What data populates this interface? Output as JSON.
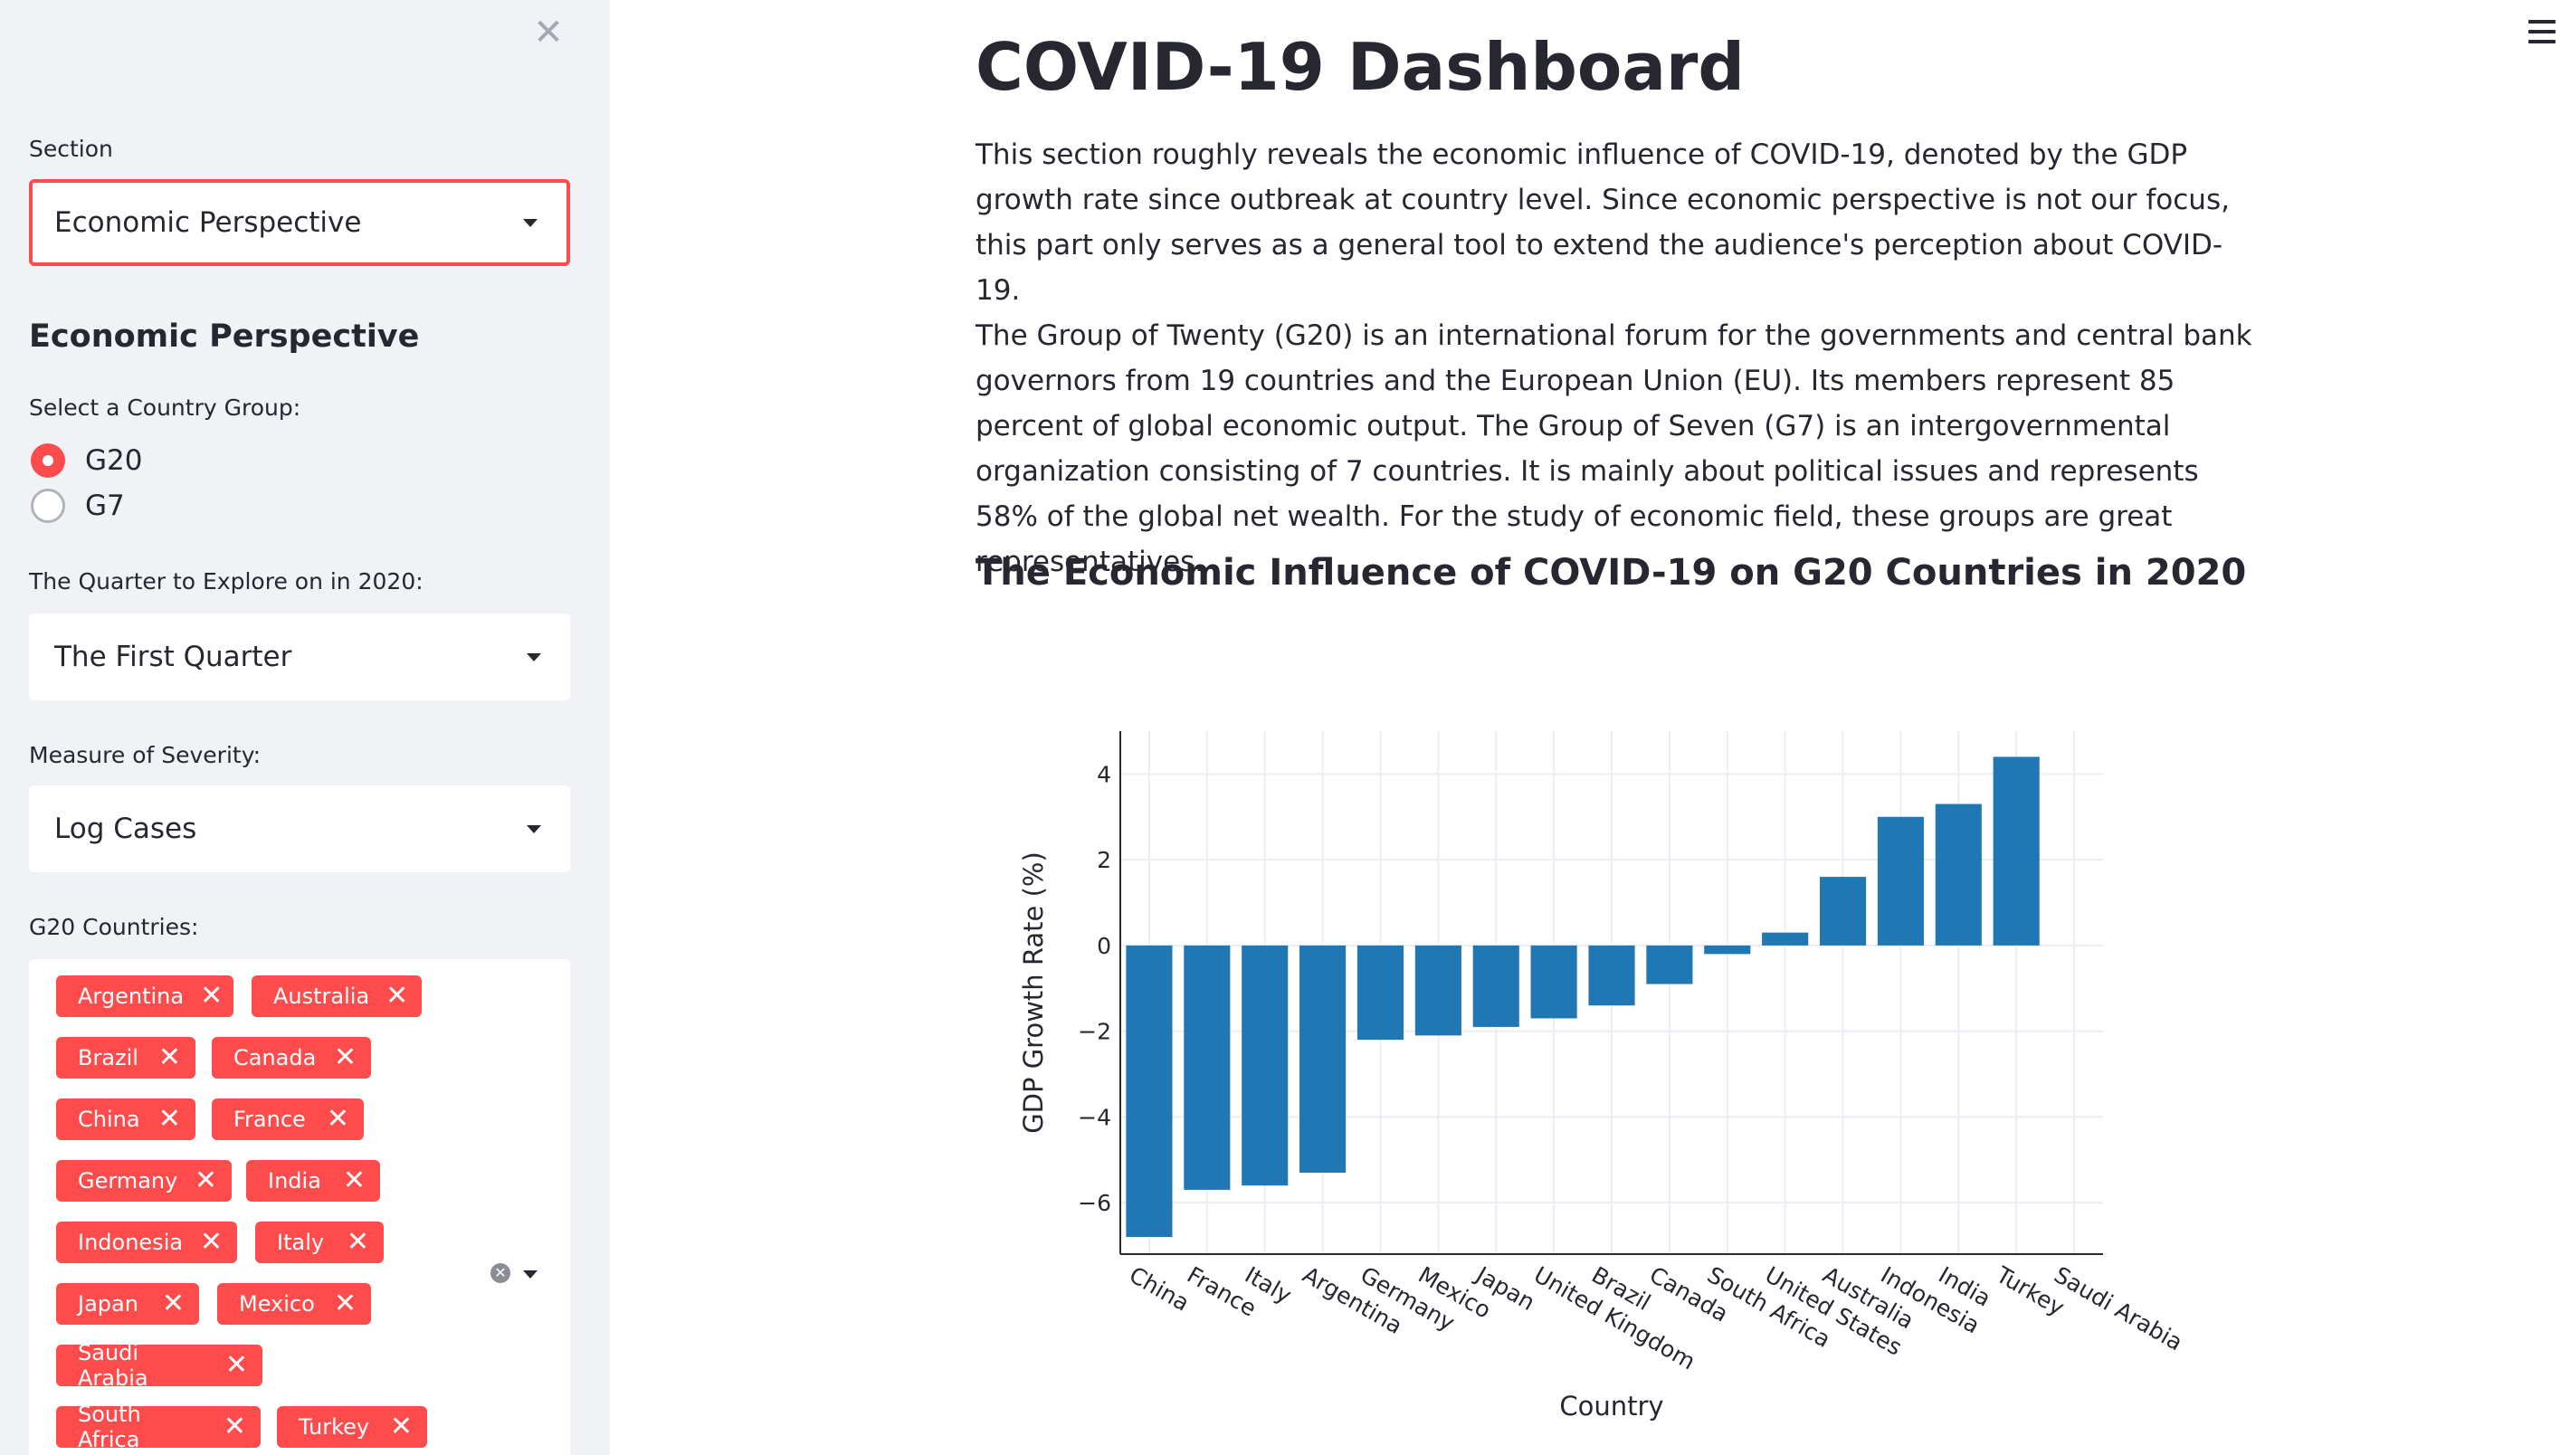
{
  "sidebar": {
    "close_icon": "close-icon",
    "section_label": "Section",
    "section_value": "Economic Perspective",
    "subheader": "Economic Perspective",
    "group_label": "Select a Country Group:",
    "group_options": [
      "G20",
      "G7"
    ],
    "group_selected": "G20",
    "quarter_label": "The Quarter to Explore on in 2020:",
    "quarter_value": "The First Quarter",
    "severity_label": "Measure of Severity:",
    "severity_value": "Log Cases",
    "countries_label": "G20 Countries:",
    "countries": [
      "Argentina",
      "Australia",
      "Brazil",
      "Canada",
      "China",
      "France",
      "Germany",
      "India",
      "Indonesia",
      "Italy",
      "Japan",
      "Mexico",
      "Saudi Arabia",
      "South Africa",
      "Turkey"
    ]
  },
  "main": {
    "menu_icon": "hamburger-menu-icon",
    "title": "COVID-19 Dashboard",
    "paragraph1": "This section roughly reveals the economic influence of COVID-19, denoted by the GDP growth rate since outbreak at country level. Since economic perspective is not our focus, this part only serves as a general tool to extend the audience's perception about COVID-19.",
    "paragraph2": "The Group of Twenty (G20) is an international forum for the governments and central bank governors from 19 countries and the European Union (EU). Its members represent 85 percent of global economic output. The Group of Seven (G7) is an intergovernmental organization consisting of 7 countries. It is mainly about political issues and represents 58% of the global net wealth. For the study of economic field, these groups are great representatives.",
    "chart_heading": "The Economic Influence of COVID-19 on G20 Countries in 2020"
  },
  "colors": {
    "accent": "#ff4b4b",
    "bar": "#1f77b4",
    "sidebar_bg": "#f0f2f6"
  },
  "chart_data": {
    "type": "bar",
    "categories": [
      "China",
      "France",
      "Italy",
      "Argentina",
      "Germany",
      "Mexico",
      "Japan",
      "United Kingdom",
      "Brazil",
      "Canada",
      "South Africa",
      "United States",
      "Australia",
      "Indonesia",
      "India",
      "Turkey",
      "Saudi Arabia"
    ],
    "values": [
      -6.8,
      -5.7,
      -5.6,
      -5.3,
      -2.2,
      -2.1,
      -1.9,
      -1.7,
      -1.4,
      -0.9,
      -0.2,
      0.3,
      1.6,
      3.0,
      3.3,
      4.4,
      0
    ],
    "xlabel": "Country",
    "ylabel": "GDP Growth Rate (%)",
    "ylim": [
      -7.2,
      5.0
    ],
    "yticks": [
      4,
      2,
      0,
      -2,
      -4,
      -6
    ],
    "grid": true
  }
}
